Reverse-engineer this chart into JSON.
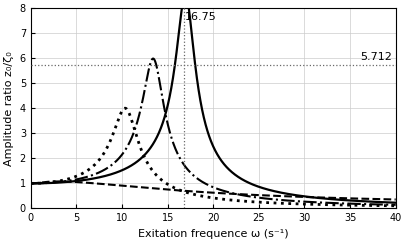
{
  "xlabel": "Exitation frequence ω (s⁻¹)",
  "ylabel": "Amplitude ratio z₀/ζ₀",
  "xlim": [
    0,
    40
  ],
  "ylim": [
    0,
    8
  ],
  "xticks": [
    0,
    5,
    10,
    15,
    20,
    25,
    30,
    35,
    40
  ],
  "yticks": [
    0,
    1,
    2,
    3,
    4,
    5,
    6,
    7,
    8
  ],
  "vline_x": 16.75,
  "hline_y": 5.712,
  "vline_label": "16.75",
  "hline_label": "5.712",
  "annotation_fontsize": 8,
  "axis_fontsize": 8,
  "tick_fontsize": 7,
  "background_color": "#ffffff",
  "grid_color": "#cccccc",
  "curves": [
    {
      "omega0": 17.0,
      "zeta": 0.059,
      "style": "-",
      "lw": 1.6
    },
    {
      "omega0": 13.5,
      "zeta": 0.085,
      "style": "-.",
      "lw": 1.5
    },
    {
      "omega0": 10.5,
      "zeta": 0.13,
      "style": ":",
      "lw": 2.0
    },
    {
      "omega0": 5.0,
      "zeta": 1.5,
      "style": "--",
      "lw": 1.5
    }
  ]
}
